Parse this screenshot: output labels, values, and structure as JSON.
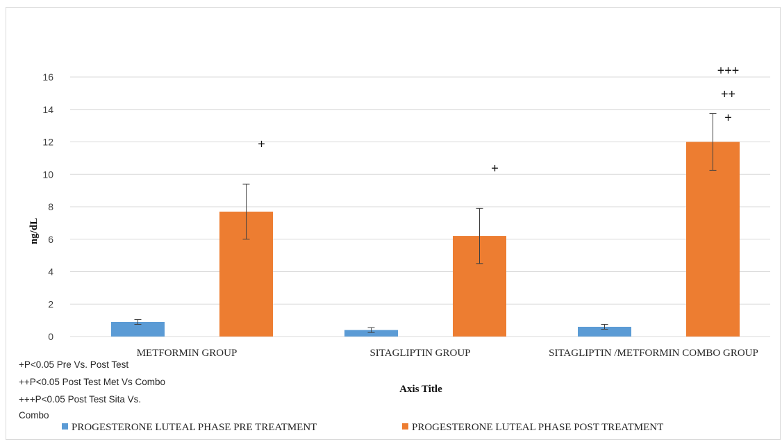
{
  "chart_data": {
    "type": "bar",
    "title": "",
    "xlabel": "Axis Title",
    "ylabel": "ng/dL",
    "ylim": [
      0,
      16
    ],
    "yticks": [
      0,
      2,
      4,
      6,
      8,
      10,
      12,
      14,
      16
    ],
    "grid": true,
    "legend_position": "bottom",
    "categories": [
      "METFORMIN GROUP",
      "SITAGLIPTIN GROUP",
      "SITAGLIPTIN /METFORMIN COMBO GROUP"
    ],
    "series": [
      {
        "name": "PROGESTERONE LUTEAL PHASE PRE TREATMENT",
        "color": "#5b9bd5",
        "values": [
          0.9,
          0.4,
          0.6
        ],
        "errors": [
          0.15,
          0.15,
          0.15
        ]
      },
      {
        "name": "PROGESTERONE LUTEAL PHASE POST TREATMENT",
        "color": "#ed7d31",
        "values": [
          7.7,
          6.2,
          12.0
        ],
        "errors": [
          1.7,
          1.7,
          1.75
        ]
      }
    ],
    "annotations": [
      {
        "category_index": 0,
        "lines": [
          "+"
        ]
      },
      {
        "category_index": 1,
        "lines": [
          "+"
        ]
      },
      {
        "category_index": 2,
        "lines": [
          "+++",
          "++",
          "+"
        ]
      }
    ],
    "footnotes": [
      "+P<0.05 Pre Vs. Post Test",
      "++P<0.05 Post Test Met Vs Combo",
      "+++P<0.05 Post Test Sita Vs.",
      "Combo"
    ]
  }
}
